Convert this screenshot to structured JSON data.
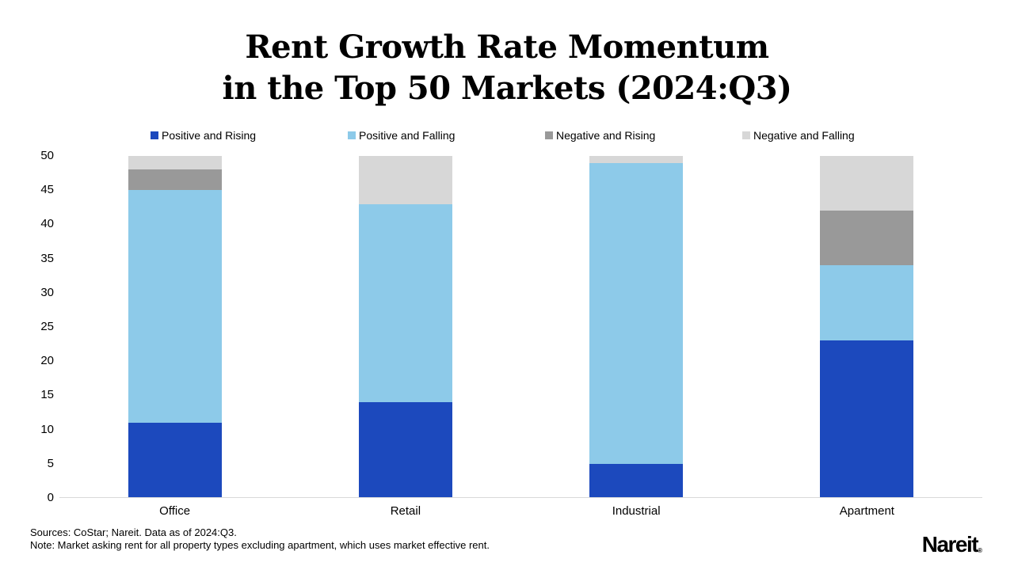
{
  "title": {
    "line1": "Rent Growth Rate Momentum",
    "line2": "in the Top 50 Markets (2024:Q3)"
  },
  "chart_data": {
    "type": "bar",
    "stacked": true,
    "title": "Rent Growth Rate Momentum in the Top 50 Markets (2024:Q3)",
    "categories": [
      "Office",
      "Retail",
      "Industrial",
      "Apartment"
    ],
    "series": [
      {
        "name": "Positive and Rising",
        "color": "#1c49bd",
        "values": [
          11,
          14,
          5,
          23
        ]
      },
      {
        "name": "Positive and Falling",
        "color": "#8dcae9",
        "values": [
          34,
          29,
          44,
          11
        ]
      },
      {
        "name": "Negative and Rising",
        "color": "#999999",
        "values": [
          3,
          0,
          0,
          8
        ]
      },
      {
        "name": "Negative and Falling",
        "color": "#d7d7d7",
        "values": [
          2,
          7,
          1,
          8
        ]
      }
    ],
    "xlabel": "",
    "ylabel": "",
    "ylim": [
      0,
      50
    ],
    "yticks": [
      0,
      5,
      10,
      15,
      20,
      25,
      30,
      35,
      40,
      45,
      50
    ],
    "grid": false,
    "legend_position": "top",
    "axis_line_color": "#d9d9d9"
  },
  "footer": {
    "source_line": "Sources: CoStar; Nareit. Data as of 2024:Q3.",
    "note_line": "Note: Market asking rent for all property types excluding apartment, which uses market effective rent.",
    "logo_text": "Nareit",
    "logo_reg": "®"
  }
}
